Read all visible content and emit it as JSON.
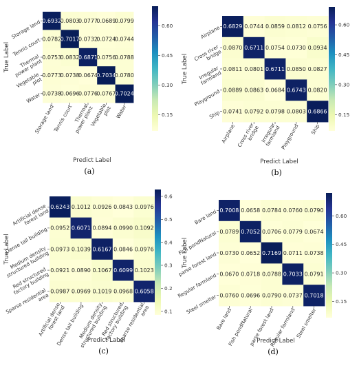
{
  "chart_data": [
    {
      "type": "heatmap",
      "caption": "(a)",
      "xlabel": "Predict Label",
      "ylabel": "True Label",
      "row_labels": [
        [
          "Storage land"
        ],
        [
          "Tennis court"
        ],
        [
          "Thermal",
          "power plant"
        ],
        [
          "Vegetable",
          "plot"
        ],
        [
          "Water"
        ]
      ],
      "col_labels": [
        [
          "Storage land"
        ],
        [
          "Tennis court"
        ],
        [
          "Thermal",
          "power plant"
        ],
        [
          "Vegetable",
          "plot"
        ],
        [
          "Water"
        ]
      ],
      "values": [
        [
          "0.6932",
          "0.0803",
          "0.0777",
          "0.0689",
          "0.0799"
        ],
        [
          "0.0782",
          "0.7017",
          "0.0732",
          "0.0724",
          "0.0744"
        ],
        [
          "0.0753",
          "0.0832",
          "0.6871",
          "0.0756",
          "0.0788"
        ],
        [
          "0.0773",
          "0.0738",
          "0.0674",
          "0.7034",
          "0.0780"
        ],
        [
          "0.0738",
          "0.0696",
          "0.0776",
          "0.0767",
          "0.7024"
        ]
      ],
      "colorbar": {
        "vmin": 0.067,
        "vmax": 0.7,
        "ticks": [
          0.15,
          0.3,
          0.45,
          0.6
        ],
        "tick_labels": [
          "0.15",
          "0.30",
          "0.45",
          "0.60"
        ]
      }
    },
    {
      "type": "heatmap",
      "caption": "(b)",
      "xlabel": "Predict Label",
      "ylabel": "True Label",
      "row_labels": [
        [
          "Airplane"
        ],
        [
          "Cross river",
          "bridge"
        ],
        [
          "Irregular",
          "farmland"
        ],
        [
          "Playground"
        ],
        [
          "Ship"
        ]
      ],
      "col_labels": [
        [
          "Airplane"
        ],
        [
          "Cross river",
          "bridge"
        ],
        [
          "Irregular",
          "farmland"
        ],
        [
          "Playground"
        ],
        [
          "Ship"
        ]
      ],
      "values": [
        [
          "0.6829",
          "0.0744",
          "0.0859",
          "0.0812",
          "0.0756"
        ],
        [
          "0.0870",
          "0.6711",
          "0.0754",
          "0.0730",
          "0.0934"
        ],
        [
          "0.0811",
          "0.0801",
          "0.6711",
          "0.0850",
          "0.0827"
        ],
        [
          "0.0889",
          "0.0863",
          "0.0684",
          "0.6743",
          "0.0820"
        ],
        [
          "0.0741",
          "0.0792",
          "0.0798",
          "0.0803",
          "0.6866"
        ]
      ],
      "colorbar": {
        "vmin": 0.068,
        "vmax": 0.69,
        "ticks": [
          0.15,
          0.3,
          0.45,
          0.6
        ],
        "tick_labels": [
          "0.15",
          "0.30",
          "0.45",
          "0.60"
        ]
      }
    },
    {
      "type": "heatmap",
      "caption": "(c)",
      "xlabel": "Predict Label",
      "ylabel": "True Label",
      "row_labels": [
        [
          "Artificial dense",
          "forest land"
        ],
        [
          "Dense tall building"
        ],
        [
          "Medium density",
          "structured building"
        ],
        [
          "Red structured",
          "factory building"
        ],
        [
          "Sparse residential",
          "area"
        ]
      ],
      "col_labels": [
        [
          "Artificial dense",
          "forest land"
        ],
        [
          "Dense tall building"
        ],
        [
          "Medium density",
          "structured building"
        ],
        [
          "Red structured",
          "factory building"
        ],
        [
          "Sparse residential",
          "area"
        ]
      ],
      "values": [
        [
          "0.6243",
          "0.1012",
          "0.0926",
          "0.0843",
          "0.0976"
        ],
        [
          "0.0952",
          "0.6071",
          "0.0894",
          "0.0990",
          "0.1092"
        ],
        [
          "0.0973",
          "0.1039",
          "0.6167",
          "0.0846",
          "0.0976"
        ],
        [
          "0.0921",
          "0.0890",
          "0.1067",
          "0.6099",
          "0.1023"
        ],
        [
          "0.0987",
          "0.0969",
          "0.1019",
          "0.0968",
          "0.6058"
        ]
      ],
      "colorbar": {
        "vmin": 0.084,
        "vmax": 0.63,
        "ticks": [
          0.1,
          0.2,
          0.3,
          0.4,
          0.5,
          0.6
        ],
        "tick_labels": [
          "0.1",
          "0.2",
          "0.3",
          "0.4",
          "0.5",
          "0.6"
        ]
      }
    },
    {
      "type": "heatmap",
      "caption": "(d)",
      "xlabel": "Predict Label",
      "ylabel": "True Label",
      "row_labels": [
        [
          "Bare land"
        ],
        [
          "Fish pondNatural"
        ],
        [
          "parse forest land"
        ],
        [
          "Regular farmland"
        ],
        [
          "Steel smelter"
        ]
      ],
      "col_labels": [
        [
          "Bare land"
        ],
        [
          "Fish pondNatural"
        ],
        [
          "parse forest land"
        ],
        [
          "Regular farmland"
        ],
        [
          "Steel smelter"
        ]
      ],
      "values": [
        [
          "0.7008",
          "0.0658",
          "0.0784",
          "0.0760",
          "0.0790"
        ],
        [
          "0.0789",
          "0.7052",
          "0.0706",
          "0.0779",
          "0.0674"
        ],
        [
          "0.0730",
          "0.0652",
          "0.7169",
          "0.0711",
          "0.0738"
        ],
        [
          "0.0670",
          "0.0718",
          "0.0788",
          "0.7033",
          "0.0791"
        ],
        [
          "0.0760",
          "0.0696",
          "0.0790",
          "0.0737",
          "0.7018"
        ]
      ],
      "colorbar": {
        "vmin": 0.065,
        "vmax": 0.72,
        "ticks": [
          0.15,
          0.3,
          0.45,
          0.6
        ],
        "tick_labels": [
          "0.15",
          "0.30",
          "0.45",
          "0.60"
        ]
      }
    }
  ]
}
